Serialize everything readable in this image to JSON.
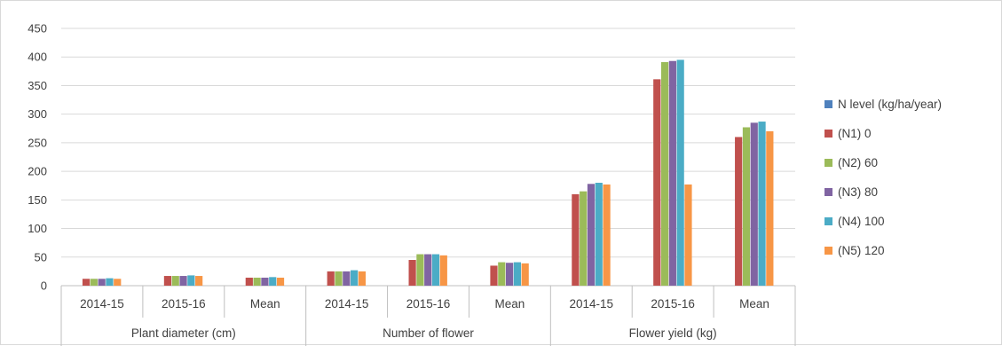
{
  "chart_data": {
    "type": "bar",
    "groups": [
      {
        "label": "Plant diameter (cm)",
        "categories": [
          "2014-15",
          "2015-16",
          "Mean"
        ]
      },
      {
        "label": "Number of flower",
        "categories": [
          "2014-15",
          "2015-16",
          "Mean"
        ]
      },
      {
        "label": "Flower yield (kg)",
        "categories": [
          "2014-15",
          "2015-16",
          "Mean"
        ]
      }
    ],
    "categories": [
      "2014-15",
      "2015-16",
      "Mean",
      "2014-15",
      "2015-16",
      "Mean",
      "2014-15",
      "2015-16",
      "Mean"
    ],
    "legend_title": "N level (kg/ha/year)",
    "legend_title_color": "#4f81bd",
    "series": [
      {
        "name": "(N1) 0",
        "color": "#c0504d",
        "values": [
          12,
          17,
          14,
          25,
          45,
          35,
          160,
          361,
          260
        ]
      },
      {
        "name": "(N2) 60",
        "color": "#9bbb59",
        "values": [
          12,
          17,
          14,
          25,
          55,
          41,
          165,
          391,
          277
        ]
      },
      {
        "name": "(N3) 80",
        "color": "#8064a2",
        "values": [
          12,
          17,
          14,
          25,
          55,
          40,
          178,
          393,
          285
        ]
      },
      {
        "name": "(N4) 100",
        "color": "#4bacc6",
        "values": [
          13,
          18,
          15,
          27,
          55,
          41,
          180,
          395,
          287
        ]
      },
      {
        "name": "(N5) 120",
        "color": "#f79646",
        "values": [
          12,
          17,
          14,
          25,
          53,
          39,
          177,
          177,
          270
        ]
      }
    ],
    "ylim": [
      0,
      450
    ],
    "yticks": [
      "0",
      "50",
      "100",
      "150",
      "200",
      "250",
      "300",
      "350",
      "400",
      "450"
    ],
    "grid": true,
    "legend_position": "right"
  }
}
